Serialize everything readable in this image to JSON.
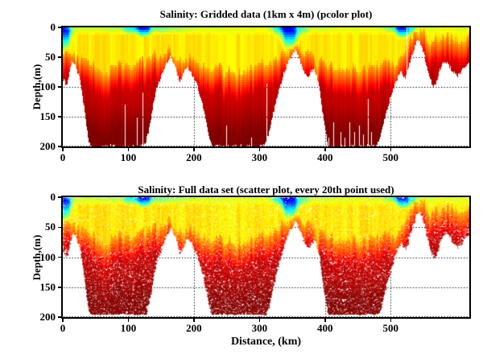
{
  "figure": {
    "background": "#ffffff",
    "axis_color": "#000000",
    "text_color": "#000000"
  },
  "chart_data": {
    "charts": [
      {
        "type": "heatmap",
        "title": "Salinity: Gridded data (1km x 4m) (pcolor plot)",
        "xlabel": "",
        "ylabel": "Depth,(m)",
        "xlim": [
          0,
          620
        ],
        "ylim": [
          0,
          200
        ],
        "y_inverted": true,
        "xticks": [
          "0",
          "100",
          "200",
          "300",
          "400",
          "500"
        ],
        "yticks": [
          "0",
          "50",
          "100",
          "150",
          "200"
        ],
        "grid": "dotted",
        "legend": "none",
        "colormap": "jet",
        "cell_size": "1km x 4m"
      },
      {
        "type": "scatter",
        "title": "Salinity: Full data set (scatter plot, every 20th point used)",
        "xlabel": "Distance, (km)",
        "ylabel": "Depth,(m)",
        "xlim": [
          0,
          620
        ],
        "ylim": [
          0,
          200
        ],
        "y_inverted": true,
        "xticks": [
          "0",
          "100",
          "200",
          "300",
          "400",
          "500"
        ],
        "yticks": [
          "0",
          "50",
          "100",
          "150",
          "200"
        ],
        "grid": "dotted",
        "legend": "none",
        "colormap": "jet",
        "subsampling": "every 20th point"
      }
    ],
    "field": {
      "note": "salinity section: low salinity (jet blue) at surface patches, yellow upper layer, high salinity (dark red) deep water; white = below seafloor / no data",
      "bathymetry_km_m": [
        [
          0,
          88
        ],
        [
          6,
          96
        ],
        [
          10,
          78
        ],
        [
          14,
          56
        ],
        [
          18,
          62
        ],
        [
          24,
          80
        ],
        [
          28,
          95
        ],
        [
          32,
          130
        ],
        [
          36,
          165
        ],
        [
          40,
          195
        ],
        [
          44,
          200
        ],
        [
          118,
          200
        ],
        [
          126,
          195
        ],
        [
          132,
          170
        ],
        [
          138,
          130
        ],
        [
          144,
          100
        ],
        [
          152,
          78
        ],
        [
          158,
          62
        ],
        [
          164,
          48
        ],
        [
          168,
          58
        ],
        [
          173,
          72
        ],
        [
          178,
          90
        ],
        [
          183,
          82
        ],
        [
          189,
          66
        ],
        [
          194,
          72
        ],
        [
          200,
          85
        ],
        [
          206,
          100
        ],
        [
          212,
          125
        ],
        [
          218,
          155
        ],
        [
          224,
          185
        ],
        [
          229,
          200
        ],
        [
          305,
          200
        ],
        [
          310,
          195
        ],
        [
          315,
          175
        ],
        [
          320,
          150
        ],
        [
          326,
          120
        ],
        [
          332,
          95
        ],
        [
          338,
          75
        ],
        [
          344,
          58
        ],
        [
          350,
          45
        ],
        [
          355,
          38
        ],
        [
          359,
          48
        ],
        [
          364,
          62
        ],
        [
          369,
          78
        ],
        [
          374,
          85
        ],
        [
          378,
          76
        ],
        [
          383,
          70
        ],
        [
          388,
          82
        ],
        [
          392,
          105
        ],
        [
          396,
          140
        ],
        [
          400,
          170
        ],
        [
          404,
          195
        ],
        [
          407,
          200
        ],
        [
          477,
          200
        ],
        [
          482,
          192
        ],
        [
          487,
          170
        ],
        [
          492,
          148
        ],
        [
          497,
          128
        ],
        [
          502,
          110
        ],
        [
          507,
          95
        ],
        [
          511,
          84
        ],
        [
          515,
          72
        ],
        [
          519,
          80
        ],
        [
          523,
          86
        ],
        [
          527,
          68
        ],
        [
          531,
          52
        ],
        [
          535,
          38
        ],
        [
          539,
          26
        ],
        [
          543,
          22
        ],
        [
          547,
          30
        ],
        [
          551,
          45
        ],
        [
          555,
          65
        ],
        [
          559,
          82
        ],
        [
          563,
          95
        ],
        [
          567,
          100
        ],
        [
          571,
          88
        ],
        [
          575,
          72
        ],
        [
          579,
          62
        ],
        [
          584,
          58
        ],
        [
          590,
          66
        ],
        [
          596,
          76
        ],
        [
          602,
          82
        ],
        [
          608,
          74
        ],
        [
          614,
          64
        ],
        [
          620,
          58
        ]
      ],
      "halocline_top_km_m": [
        [
          0,
          40
        ],
        [
          10,
          44
        ],
        [
          20,
          48
        ],
        [
          30,
          55
        ],
        [
          40,
          60
        ],
        [
          55,
          68
        ],
        [
          70,
          72
        ],
        [
          85,
          68
        ],
        [
          100,
          62
        ],
        [
          110,
          58
        ],
        [
          120,
          60
        ],
        [
          130,
          55
        ],
        [
          140,
          48
        ],
        [
          150,
          42
        ],
        [
          160,
          38
        ],
        [
          170,
          45
        ],
        [
          180,
          52
        ],
        [
          190,
          48
        ],
        [
          200,
          55
        ],
        [
          210,
          60
        ],
        [
          220,
          65
        ],
        [
          235,
          70
        ],
        [
          250,
          72
        ],
        [
          265,
          75
        ],
        [
          280,
          70
        ],
        [
          295,
          65
        ],
        [
          305,
          62
        ],
        [
          315,
          55
        ],
        [
          325,
          48
        ],
        [
          335,
          42
        ],
        [
          345,
          36
        ],
        [
          355,
          32
        ],
        [
          362,
          40
        ],
        [
          370,
          48
        ],
        [
          380,
          52
        ],
        [
          390,
          58
        ],
        [
          400,
          62
        ],
        [
          415,
          66
        ],
        [
          430,
          70
        ],
        [
          445,
          72
        ],
        [
          460,
          68
        ],
        [
          472,
          64
        ],
        [
          482,
          60
        ],
        [
          492,
          58
        ],
        [
          502,
          56
        ],
        [
          512,
          58
        ],
        [
          518,
          42
        ],
        [
          524,
          30
        ],
        [
          530,
          20
        ],
        [
          536,
          10
        ],
        [
          542,
          5
        ],
        [
          548,
          9
        ],
        [
          554,
          15
        ],
        [
          560,
          22
        ],
        [
          566,
          25
        ],
        [
          572,
          18
        ],
        [
          578,
          10
        ],
        [
          584,
          8
        ],
        [
          590,
          14
        ],
        [
          598,
          20
        ],
        [
          606,
          22
        ],
        [
          614,
          18
        ],
        [
          620,
          15
        ]
      ],
      "surface_patches": [
        {
          "x": 3,
          "w": 9,
          "d": 42,
          "v": 0.06
        },
        {
          "x": 30,
          "w": 22,
          "d": 9,
          "v": 0.57
        },
        {
          "x": 70,
          "w": 18,
          "d": 10,
          "v": 0.55
        },
        {
          "x": 105,
          "w": 14,
          "d": 14,
          "v": 0.38
        },
        {
          "x": 124,
          "w": 11,
          "d": 18,
          "v": 0.1
        },
        {
          "x": 150,
          "w": 12,
          "d": 12,
          "v": 0.46
        },
        {
          "x": 170,
          "w": 20,
          "d": 10,
          "v": 0.52
        },
        {
          "x": 192,
          "w": 12,
          "d": 8,
          "v": 0.56
        },
        {
          "x": 230,
          "w": 20,
          "d": 8,
          "v": 0.58
        },
        {
          "x": 262,
          "w": 18,
          "d": 7,
          "v": 0.6
        },
        {
          "x": 328,
          "w": 10,
          "d": 14,
          "v": 0.44
        },
        {
          "x": 346,
          "w": 13,
          "d": 38,
          "v": 0.04
        },
        {
          "x": 365,
          "w": 10,
          "d": 14,
          "v": 0.44
        },
        {
          "x": 395,
          "w": 22,
          "d": 9,
          "v": 0.57
        },
        {
          "x": 435,
          "w": 22,
          "d": 7,
          "v": 0.6
        },
        {
          "x": 496,
          "w": 9,
          "d": 10,
          "v": 0.52
        },
        {
          "x": 519,
          "w": 12,
          "d": 20,
          "v": 0.1
        },
        {
          "x": 532,
          "w": 6,
          "d": 10,
          "v": 0.42
        },
        {
          "x": 612,
          "w": 9,
          "d": 6,
          "v": 0.6
        }
      ],
      "data_gap_columns_km": [
        {
          "x": 95,
          "top": 130
        },
        {
          "x": 113,
          "top": 150
        },
        {
          "x": 121,
          "top": 110
        },
        {
          "x": 249,
          "top": 165
        },
        {
          "x": 287,
          "top": 185
        },
        {
          "x": 311,
          "top": 95
        },
        {
          "x": 395,
          "top": 150
        },
        {
          "x": 405,
          "top": 185
        },
        {
          "x": 412,
          "top": 160
        },
        {
          "x": 423,
          "top": 175
        },
        {
          "x": 430,
          "top": 185
        },
        {
          "x": 437,
          "top": 160
        },
        {
          "x": 445,
          "top": 175
        },
        {
          "x": 452,
          "top": 165
        },
        {
          "x": 458,
          "top": 180
        },
        {
          "x": 465,
          "top": 120
        },
        {
          "x": 470,
          "top": 175
        },
        {
          "x": 524,
          "top": 0
        }
      ]
    }
  }
}
